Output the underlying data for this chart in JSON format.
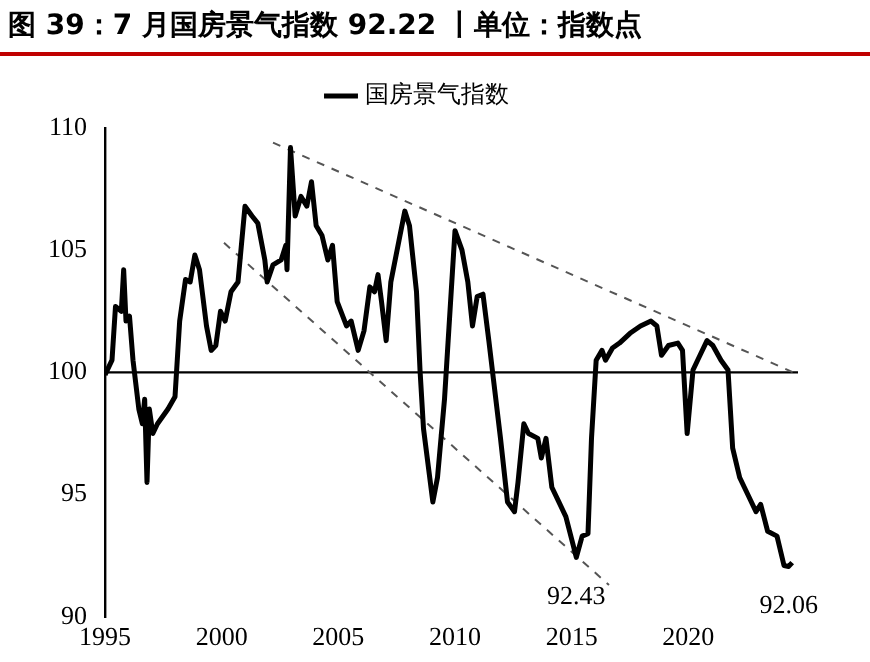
{
  "chart_data": {
    "type": "line",
    "title": "图 39：7 月国房景气指数 92.22 丨单位：指数点",
    "legend": "top",
    "grid": false,
    "marker": "none",
    "xlim": [
      1995,
      2024.7
    ],
    "xticks": [
      1995,
      2000,
      2005,
      2010,
      2015,
      2020
    ],
    "ylim": [
      90,
      110
    ],
    "yticks": [
      90,
      95,
      100,
      105,
      110
    ],
    "series": [
      {
        "name": "国房景气指数",
        "color": "#000000",
        "line_style": "solid",
        "x": [
          1995.0,
          1995.3,
          1995.45,
          1995.7,
          1995.8,
          1995.9,
          1996.05,
          1996.2,
          1996.45,
          1996.6,
          1996.7,
          1996.8,
          1996.9,
          1997.05,
          1997.25,
          1997.7,
          1998.0,
          1998.2,
          1998.45,
          1998.65,
          1998.85,
          1999.05,
          1999.35,
          1999.55,
          1999.75,
          1999.95,
          2000.15,
          2000.4,
          2000.7,
          2001.0,
          2001.3,
          2001.55,
          2001.85,
          2001.95,
          2002.2,
          2002.55,
          2002.75,
          2002.8,
          2002.95,
          2003.15,
          2003.4,
          2003.65,
          2003.85,
          2004.05,
          2004.3,
          2004.55,
          2004.75,
          2004.95,
          2005.35,
          2005.55,
          2005.85,
          2006.1,
          2006.35,
          2006.55,
          2006.7,
          2006.85,
          2007.05,
          2007.25,
          2007.6,
          2007.85,
          2008.05,
          2008.35,
          2008.5,
          2008.65,
          2009.05,
          2009.25,
          2009.55,
          2010.0,
          2010.3,
          2010.55,
          2010.75,
          2010.95,
          2011.2,
          2011.45,
          2011.65,
          2011.95,
          2012.25,
          2012.55,
          2012.7,
          2012.95,
          2013.15,
          2013.55,
          2013.7,
          2013.9,
          2014.15,
          2014.45,
          2014.75,
          2015.2,
          2015.45,
          2015.7,
          2015.85,
          2016.05,
          2016.3,
          2016.45,
          2016.75,
          2017.05,
          2017.5,
          2017.95,
          2018.4,
          2018.65,
          2018.85,
          2019.15,
          2019.55,
          2019.75,
          2019.95,
          2020.2,
          2020.5,
          2020.8,
          2021.05,
          2021.4,
          2021.7,
          2021.9,
          2022.2,
          2022.6,
          2022.9,
          2023.1,
          2023.4,
          2023.8,
          2024.1,
          2024.3,
          2024.45
        ],
        "values": [
          99.9,
          100.5,
          102.7,
          102.5,
          104.2,
          102.1,
          102.3,
          100.5,
          98.5,
          97.9,
          98.9,
          95.5,
          98.5,
          97.5,
          97.9,
          98.5,
          99.0,
          102.1,
          103.8,
          103.7,
          104.8,
          104.2,
          101.9,
          100.9,
          101.1,
          102.5,
          102.1,
          103.3,
          103.7,
          106.8,
          106.4,
          106.1,
          104.6,
          103.7,
          104.4,
          104.6,
          105.2,
          104.2,
          109.2,
          106.4,
          107.2,
          106.8,
          107.8,
          106.0,
          105.6,
          104.6,
          105.2,
          102.9,
          101.9,
          102.1,
          100.9,
          101.7,
          103.5,
          103.3,
          104.0,
          102.9,
          101.3,
          103.7,
          105.4,
          106.6,
          106.0,
          103.3,
          100.1,
          97.7,
          94.7,
          95.7,
          98.9,
          105.8,
          105.0,
          103.7,
          101.9,
          103.1,
          103.2,
          101.3,
          99.7,
          97.3,
          94.7,
          94.3,
          95.5,
          97.9,
          97.5,
          97.3,
          96.5,
          97.3,
          95.3,
          94.7,
          94.1,
          92.43,
          93.3,
          93.4,
          97.3,
          100.5,
          100.9,
          100.5,
          101.0,
          101.2,
          101.6,
          101.9,
          102.1,
          101.9,
          100.7,
          101.1,
          101.2,
          100.9,
          97.5,
          100.1,
          100.7,
          101.3,
          101.1,
          100.5,
          100.1,
          96.9,
          95.7,
          94.9,
          94.3,
          94.6,
          93.5,
          93.3,
          92.1,
          92.06,
          92.22
        ]
      },
      {
        "type": "line",
        "color": "#555555",
        "line_style": "dashed",
        "x": [
          2002.2,
          2024.5
        ],
        "values": [
          109.4,
          100.0
        ]
      },
      {
        "type": "line",
        "color": "#555555",
        "line_style": "dashed",
        "x": [
          2000.1,
          2016.6
        ],
        "values": [
          105.3,
          91.3
        ]
      }
    ],
    "ref_lines": [
      {
        "axis": "y",
        "value": 100,
        "color": "#000000"
      }
    ],
    "annotations": [
      {
        "text": "92.43",
        "x": 2015.2,
        "y": 92.43
      },
      {
        "text": "92.06",
        "x": 2024.3,
        "y": 92.06
      }
    ]
  }
}
